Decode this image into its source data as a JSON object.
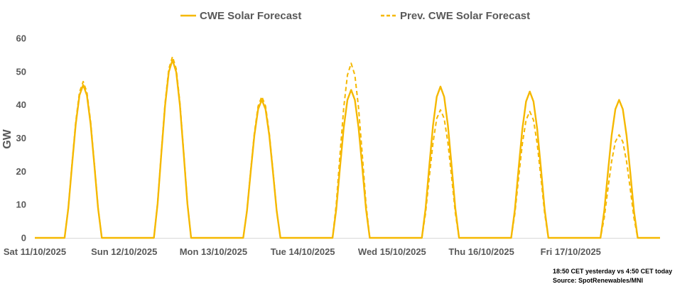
{
  "chart_data": {
    "type": "line",
    "title": "",
    "xlabel": "",
    "ylabel": "GW",
    "ylim": [
      0,
      60
    ],
    "yticks": [
      0,
      10,
      20,
      30,
      40,
      50,
      60
    ],
    "categories": [
      "Sat 11/10/2025",
      "Sun 12/10/2025",
      "Mon 13/10/2025",
      "Tue 14/10/2025",
      "Wed 15/10/2025",
      "Thu 16/10/2025",
      "Fri 17/10/2025"
    ],
    "x_resolution": "hourly",
    "daylight_hours": [
      8,
      18
    ],
    "grid": false,
    "legend_position": "top",
    "series": [
      {
        "name": "CWE Solar Forecast",
        "style": "solid",
        "color": "#F5B800",
        "daily_peak_gw": [
          46,
          53.5,
          41.5,
          44.5,
          45.5,
          44,
          41.5
        ]
      },
      {
        "name": "Prev. CWE Solar Forecast",
        "style": "dashed",
        "color": "#F5B800",
        "daily_peak_gw": [
          47,
          54.5,
          42.5,
          52.5,
          38.5,
          38,
          31
        ]
      }
    ]
  },
  "notes": {
    "line1": "18:50 CET yesterday vs  4:50 CET today",
    "line2": "Source: SpotRenewables/MNI"
  }
}
